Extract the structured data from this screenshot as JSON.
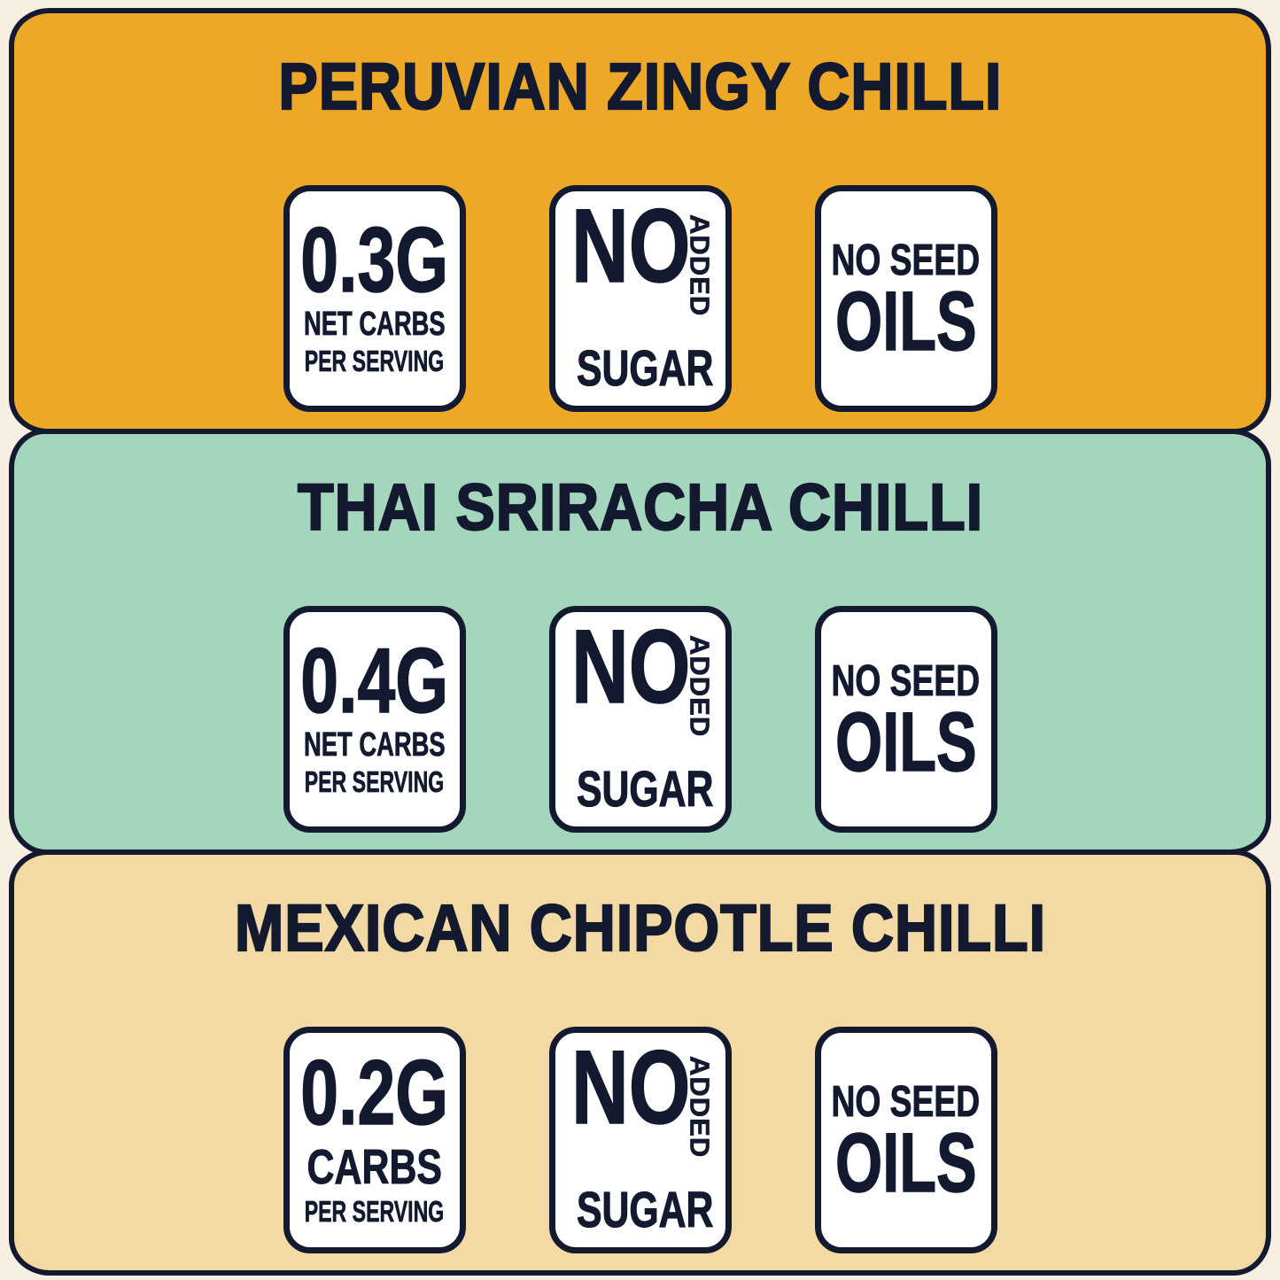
{
  "colors": {
    "page_background": "#F8EFE3",
    "ink_navy": "#131A30",
    "badge_background": "#FFFFFF",
    "panel_orange": "#EEA827",
    "panel_mint": "#A3D6BC",
    "panel_tan": "#F3DAA5"
  },
  "panels": [
    {
      "title": "PERUVIAN ZINGY CHILLI",
      "background": "#EEA827",
      "carbs_badge": {
        "value": "0.3G",
        "line2": "NET CARBS",
        "line3": "PER SERVING"
      },
      "sugar_badge": {
        "no": "NO",
        "added": "ADDED",
        "sugar": "SUGAR"
      },
      "oils_badge": {
        "line1": "NO SEED",
        "line2": "OILS"
      }
    },
    {
      "title": "THAI SRIRACHA CHILLI",
      "background": "#A3D6BC",
      "carbs_badge": {
        "value": "0.4G",
        "line2": "NET CARBS",
        "line3": "PER SERVING"
      },
      "sugar_badge": {
        "no": "NO",
        "added": "ADDED",
        "sugar": "SUGAR"
      },
      "oils_badge": {
        "line1": "NO SEED",
        "line2": "OILS"
      }
    },
    {
      "title": "MEXICAN CHIPOTLE CHILLI",
      "background": "#F3DAA5",
      "carbs_badge": {
        "value": "0.2G",
        "line2": "CARBS",
        "line3": "PER SERVING"
      },
      "sugar_badge": {
        "no": "NO",
        "added": "ADDED",
        "sugar": "SUGAR"
      },
      "oils_badge": {
        "line1": "NO SEED",
        "line2": "OILS"
      }
    }
  ]
}
